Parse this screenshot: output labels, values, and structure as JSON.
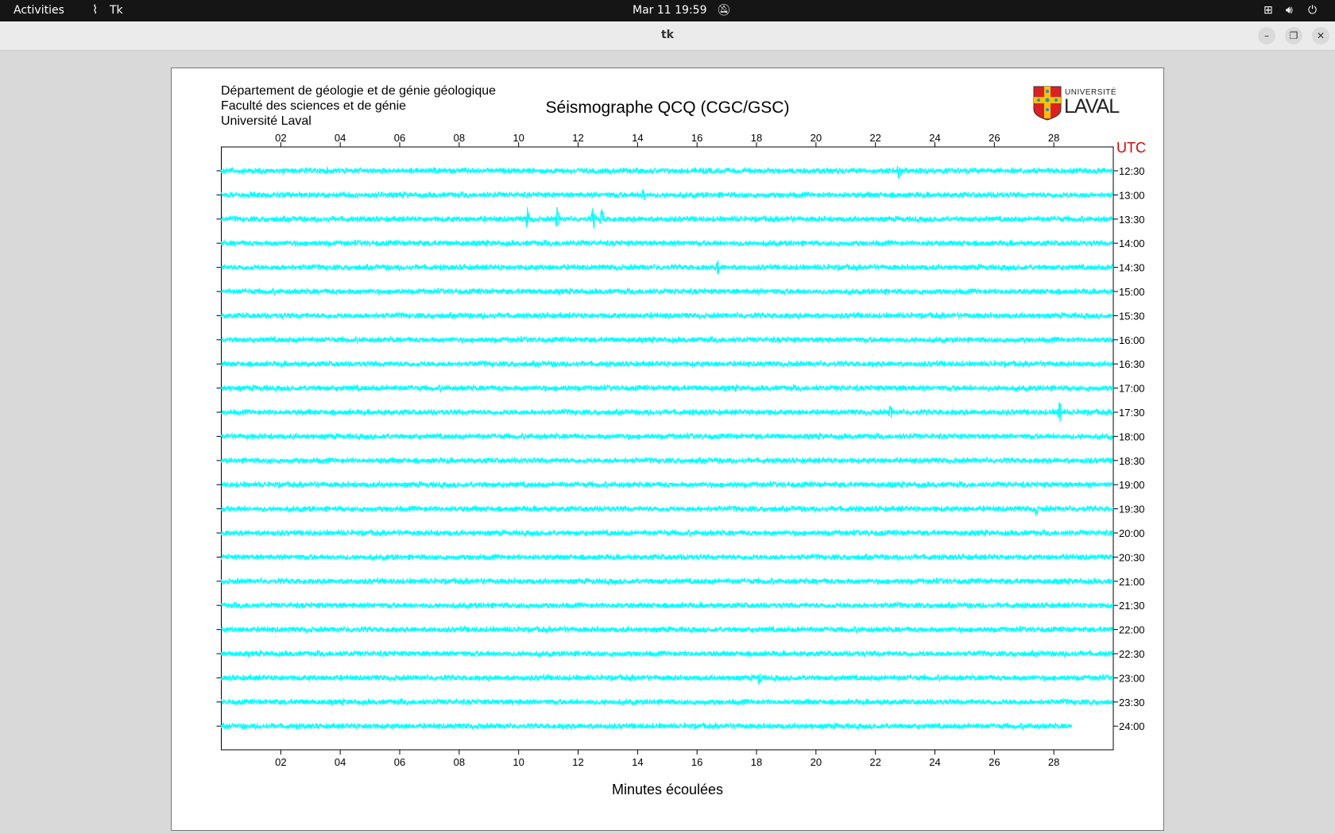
{
  "topbar": {
    "activities": "Activities",
    "app": "Tk",
    "clock": "Mar 11  19:59"
  },
  "window": {
    "title": "tk"
  },
  "header": {
    "lines": [
      "Département de géologie et de génie géologique",
      "Faculté des sciences et de génie",
      "Université Laval"
    ],
    "title": "Séismographe QCQ (CGC/GSC)",
    "logo_text": [
      "UNIVERSITÉ",
      "LAVAL"
    ]
  },
  "chart_data": {
    "type": "line",
    "xlabel": "Minutes écoulées",
    "ylabel": "UTC",
    "xlim": [
      0,
      30
    ],
    "x_ticks": [
      "02",
      "04",
      "06",
      "08",
      "10",
      "12",
      "14",
      "16",
      "18",
      "20",
      "22",
      "24",
      "26",
      "28"
    ],
    "row_labels": [
      "12:30",
      "13:00",
      "13:30",
      "14:00",
      "14:30",
      "15:00",
      "15:30",
      "16:00",
      "16:30",
      "17:00",
      "17:30",
      "18:00",
      "18:30",
      "19:00",
      "19:30",
      "20:00",
      "20:30",
      "21:00",
      "21:30",
      "22:00",
      "22:30",
      "23:00",
      "23:30",
      "24:00"
    ],
    "trace_color": "#00ffff",
    "last_row_end_minute": 28.6,
    "events": [
      {
        "row": "12:30",
        "minute": 22.8,
        "amplitude": "large"
      },
      {
        "row": "13:00",
        "minute": 14.2,
        "amplitude": "small"
      },
      {
        "row": "13:30",
        "minute": 10.3,
        "amplitude": "medium"
      },
      {
        "row": "13:30",
        "minute": 11.3,
        "amplitude": "medium"
      },
      {
        "row": "13:30",
        "minute": 12.5,
        "amplitude": "medium"
      },
      {
        "row": "13:30",
        "minute": 12.8,
        "amplitude": "medium"
      },
      {
        "row": "14:30",
        "minute": 16.7,
        "amplitude": "small"
      },
      {
        "row": "17:30",
        "minute": 22.5,
        "amplitude": "small"
      },
      {
        "row": "17:30",
        "minute": 28.2,
        "amplitude": "large"
      },
      {
        "row": "19:30",
        "minute": 27.4,
        "amplitude": "small"
      },
      {
        "row": "23:00",
        "minute": 18.1,
        "amplitude": "small"
      }
    ],
    "utc_color": "#e00000"
  }
}
